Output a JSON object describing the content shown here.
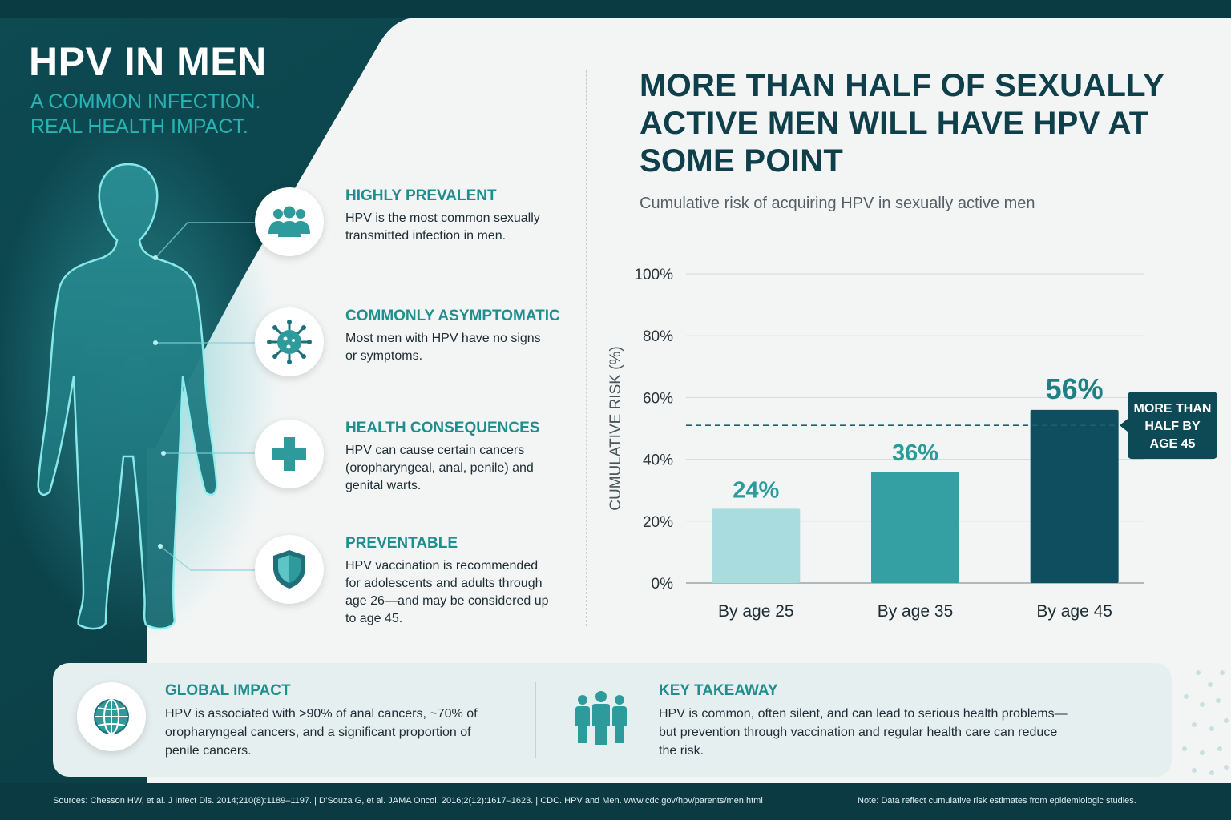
{
  "hero": {
    "title": "HPV IN MEN",
    "subtitle_line1": "A COMMON INFECTION.",
    "subtitle_line2": "REAL HEALTH IMPACT."
  },
  "features": [
    {
      "icon": "people-group-icon",
      "title": "HIGHLY PREVALENT",
      "text": "HPV is the most common sexually transmitted infection in men."
    },
    {
      "icon": "virus-icon",
      "title": "COMMONLY ASYMPTOMATIC",
      "text": "Most men with HPV have no signs or symptoms."
    },
    {
      "icon": "medical-cross-icon",
      "title": "HEALTH CONSEQUENCES",
      "text": "HPV can cause certain cancers (oropharyngeal, anal, penile) and genital warts."
    },
    {
      "icon": "shield-icon",
      "title": "PREVENTABLE",
      "text": "HPV vaccination is recommended for adolescents and adults through age 26—and may be considered up to age 45."
    }
  ],
  "headline": "MORE THAN HALF OF SEXUALLY ACTIVE MEN WILL HAVE HPV AT SOME POINT",
  "chart_data": {
    "type": "bar",
    "subtitle": "Cumulative risk of acquiring HPV in sexually active men",
    "ylabel": "CUMULATIVE RISK (%)",
    "categories": [
      "By age 25",
      "By age 35",
      "By age 45"
    ],
    "values": [
      24,
      36,
      56
    ],
    "data_labels": [
      "24%",
      "36%",
      "56%"
    ],
    "yticks": [
      "0%",
      "20%",
      "40%",
      "60%",
      "80%",
      "100%"
    ],
    "ylim": [
      0,
      100
    ],
    "grid": true,
    "reference_line": 51,
    "annotation": "MORE THAN HALF BY AGE 45",
    "bar_colors": [
      "#a9dcdf",
      "#34a0a4",
      "#0e4e5e"
    ]
  },
  "bottom": {
    "global_title": "GLOBAL IMPACT",
    "global_text": "HPV is associated with >90% of anal cancers, ~70% of oropharyngeal cancers, and a significant proportion of penile cancers.",
    "takeaway_title": "KEY TAKEAWAY",
    "takeaway_text": "HPV is common, often silent, and can lead to serious health problems—but prevention through vaccination and regular health care can reduce the risk."
  },
  "footer": {
    "sources": "Sources:  Chesson HW, et al. J Infect Dis. 2014;210(8):1189–1197.  |  D’Souza G, et al. JAMA Oncol. 2016;2(12):1617–1623.  |  CDC. HPV and Men. www.cdc.gov/hpv/parents/men.html",
    "note": "Note: Data reflect cumulative risk estimates from epidemiologic studies."
  },
  "colors": {
    "teal": "#1f8e8e",
    "dark_teal": "#0b3d45",
    "navy": "#0f3f4a"
  }
}
